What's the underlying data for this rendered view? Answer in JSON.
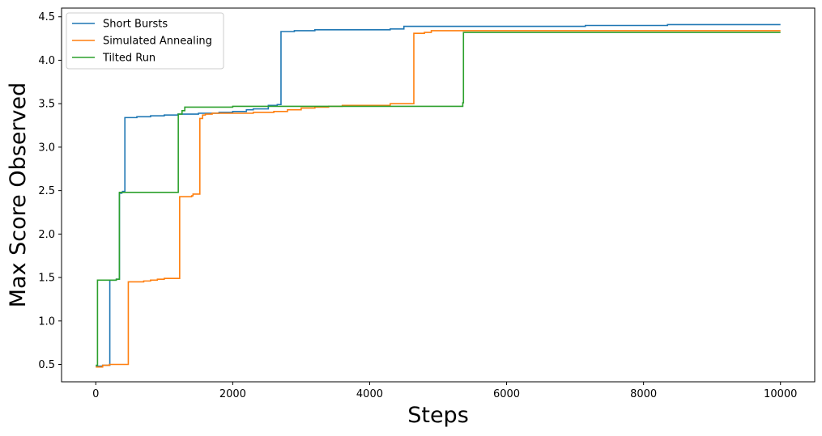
{
  "chart_data": {
    "type": "line",
    "step": true,
    "xlabel": "Steps",
    "ylabel": "Max Score Observed",
    "xlim": [
      -500,
      10500
    ],
    "ylim": [
      0.3,
      4.6
    ],
    "xticks": [
      0,
      2000,
      4000,
      6000,
      8000,
      10000
    ],
    "xtick_labels": [
      "0",
      "2000",
      "4000",
      "6000",
      "8000",
      "10000"
    ],
    "yticks": [
      0.5,
      1.0,
      1.5,
      2.0,
      2.5,
      3.0,
      3.5,
      4.0,
      4.5
    ],
    "ytick_labels": [
      "0.5",
      "1.0",
      "1.5",
      "2.0",
      "2.5",
      "3.0",
      "3.5",
      "4.0",
      "4.5"
    ],
    "legend_position": "top-left",
    "grid": false,
    "series": [
      {
        "name": "Short Bursts",
        "color": "#1f77b4",
        "points": [
          [
            0,
            0.48
          ],
          [
            100,
            0.49
          ],
          [
            200,
            0.49
          ],
          [
            205,
            1.47
          ],
          [
            300,
            1.48
          ],
          [
            340,
            1.48
          ],
          [
            345,
            2.47
          ],
          [
            380,
            2.48
          ],
          [
            390,
            2.49
          ],
          [
            420,
            2.49
          ],
          [
            425,
            3.34
          ],
          [
            600,
            3.35
          ],
          [
            800,
            3.36
          ],
          [
            1000,
            3.37
          ],
          [
            1200,
            3.38
          ],
          [
            1500,
            3.39
          ],
          [
            1800,
            3.4
          ],
          [
            2000,
            3.41
          ],
          [
            2200,
            3.43
          ],
          [
            2300,
            3.44
          ],
          [
            2500,
            3.44
          ],
          [
            2520,
            3.48
          ],
          [
            2650,
            3.49
          ],
          [
            2700,
            3.49
          ],
          [
            2705,
            4.33
          ],
          [
            2900,
            4.34
          ],
          [
            3200,
            4.35
          ],
          [
            3800,
            4.35
          ],
          [
            4300,
            4.36
          ],
          [
            4480,
            4.36
          ],
          [
            4500,
            4.39
          ],
          [
            5500,
            4.39
          ],
          [
            6500,
            4.39
          ],
          [
            7100,
            4.39
          ],
          [
            7150,
            4.4
          ],
          [
            8300,
            4.4
          ],
          [
            8350,
            4.41
          ],
          [
            10000,
            4.41
          ]
        ]
      },
      {
        "name": "Simulated Annealing",
        "color": "#ff7f0e",
        "points": [
          [
            0,
            0.47
          ],
          [
            100,
            0.49
          ],
          [
            200,
            0.5
          ],
          [
            300,
            0.5
          ],
          [
            470,
            0.5
          ],
          [
            475,
            1.45
          ],
          [
            700,
            1.46
          ],
          [
            800,
            1.47
          ],
          [
            900,
            1.48
          ],
          [
            1000,
            1.49
          ],
          [
            1220,
            1.49
          ],
          [
            1225,
            2.43
          ],
          [
            1400,
            2.44
          ],
          [
            1420,
            2.46
          ],
          [
            1500,
            2.46
          ],
          [
            1520,
            3.33
          ],
          [
            1560,
            3.37
          ],
          [
            1600,
            3.38
          ],
          [
            1700,
            3.39
          ],
          [
            2000,
            3.39
          ],
          [
            2300,
            3.4
          ],
          [
            2600,
            3.41
          ],
          [
            2800,
            3.43
          ],
          [
            3000,
            3.45
          ],
          [
            3200,
            3.46
          ],
          [
            3400,
            3.47
          ],
          [
            3600,
            3.48
          ],
          [
            4200,
            3.48
          ],
          [
            4300,
            3.5
          ],
          [
            4640,
            3.5
          ],
          [
            4645,
            4.31
          ],
          [
            4800,
            4.32
          ],
          [
            4900,
            4.34
          ],
          [
            5500,
            4.34
          ],
          [
            7000,
            4.34
          ],
          [
            10000,
            4.34
          ]
        ]
      },
      {
        "name": "Tilted Run",
        "color": "#2ca02c",
        "points": [
          [
            0,
            0.49
          ],
          [
            20,
            0.49
          ],
          [
            25,
            1.47
          ],
          [
            300,
            1.48
          ],
          [
            340,
            1.48
          ],
          [
            345,
            2.48
          ],
          [
            500,
            2.48
          ],
          [
            1200,
            2.48
          ],
          [
            1205,
            3.38
          ],
          [
            1260,
            3.42
          ],
          [
            1300,
            3.46
          ],
          [
            2000,
            3.47
          ],
          [
            3000,
            3.47
          ],
          [
            4000,
            3.47
          ],
          [
            5350,
            3.47
          ],
          [
            5360,
            3.51
          ],
          [
            5370,
            4.32
          ],
          [
            7000,
            4.32
          ],
          [
            10000,
            4.32
          ]
        ]
      }
    ]
  }
}
